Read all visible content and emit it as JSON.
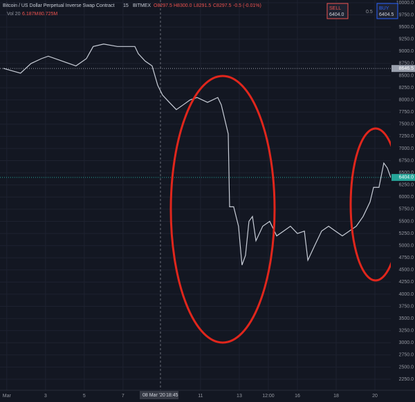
{
  "chart_data": {
    "type": "line",
    "title": "Bitcoin / US Dollar Perpetual Inverse Swap Contract",
    "interval": "15",
    "exchange": "BITMEX",
    "ohlc": [
      "O8297.5",
      "H8300.0",
      "L8291.5",
      "C8297.5",
      "-0.5 (-0.01%)"
    ],
    "volume_legend": [
      "Vol 20",
      "6.187M",
      "80.725M"
    ],
    "order_panel": {
      "sell_label": "SELL",
      "sell_price": "6404.0",
      "spread": "0.5",
      "buy_label": "BUY",
      "buy_price": "6404.5"
    },
    "crosshair": {
      "date": "08 Mar '20",
      "time": "18:45"
    },
    "series": [
      {
        "name": "BTCUSD",
        "color": "#c9ced8",
        "x": [
          0.82,
          1.71,
          2.25,
          2.79,
          3.14,
          3.86,
          4.57,
          5.11,
          5.46,
          6.0,
          6.71,
          7.61,
          7.79,
          8.14,
          8.5,
          8.79,
          9.04,
          9.39,
          9.75,
          10.11,
          10.46,
          10.82,
          11.36,
          11.89,
          12.07,
          12.25,
          12.43,
          12.5,
          12.71,
          12.96,
          13.14,
          13.32,
          13.5,
          13.68,
          13.86,
          14.21,
          14.57,
          14.93,
          15.29,
          15.64,
          16.0,
          16.36,
          16.54,
          16.89,
          17.25,
          17.61,
          17.96,
          18.32,
          18.68,
          19.04,
          19.39,
          19.75,
          19.93,
          20.21,
          20.46,
          20.64,
          20.82
        ],
        "values": [
          8650,
          8550,
          8750,
          8850,
          8900,
          8800,
          8700,
          8850,
          9100,
          9150,
          9100,
          9100,
          8950,
          8800,
          8700,
          8300,
          8100,
          7950,
          7800,
          7900,
          8000,
          8050,
          7950,
          8050,
          7900,
          7600,
          7300,
          5800,
          5800,
          5400,
          4600,
          4800,
          5500,
          5600,
          5100,
          5400,
          5500,
          5200,
          5300,
          5400,
          5250,
          5300,
          4700,
          5000,
          5300,
          5400,
          5300,
          5200,
          5300,
          5400,
          5600,
          5900,
          6200,
          6200,
          6700,
          6600,
          6400
        ]
      }
    ],
    "price_lines": [
      {
        "value": 8646.5,
        "label": "8646.5",
        "color": "#9aa0ad"
      },
      {
        "value": 6404,
        "label": "6404.0",
        "color": "#26a69a"
      }
    ],
    "xlim": [
      0.65,
      20.82
    ],
    "xticks": [
      {
        "value": 1,
        "label": "Mar"
      },
      3,
      5,
      7,
      11,
      13,
      {
        "value": 14.5,
        "label": "12:00"
      },
      16,
      18,
      20
    ],
    "ylim": [
      2250,
      10000
    ],
    "yticks": [
      {
        "value": 2250,
        "label": "2250.0"
      },
      {
        "value": 2500,
        "label": "2500.0"
      },
      {
        "value": 2750,
        "label": "2750.0"
      },
      {
        "value": 3000,
        "label": "3000.0"
      },
      {
        "value": 3250,
        "label": "3250.0"
      },
      {
        "value": 3500,
        "label": "3500.0"
      },
      {
        "value": 3750,
        "label": "3750.0"
      },
      {
        "value": 4000,
        "label": "4000.0"
      },
      {
        "value": 4250,
        "label": "4250.0"
      },
      {
        "value": 4500,
        "label": "4500.0"
      },
      {
        "value": 4750,
        "label": "4750.0"
      },
      {
        "value": 5000,
        "label": "5000.0"
      },
      {
        "value": 5250,
        "label": "5250.0"
      },
      {
        "value": 5500,
        "label": "5500.0"
      },
      {
        "value": 5750,
        "label": "5750.0"
      },
      {
        "value": 6000,
        "label": "6000.0"
      },
      {
        "value": 6250,
        "label": "6250.0"
      },
      {
        "value": 6500,
        "label": "6500.0"
      },
      {
        "value": 6750,
        "label": "6750.0"
      },
      {
        "value": 7000,
        "label": "7000.0"
      },
      {
        "value": 7250,
        "label": "7250.0"
      },
      {
        "value": 7500,
        "label": "7500.0"
      },
      {
        "value": 7750,
        "label": "7750.0"
      },
      {
        "value": 8000,
        "label": "8000.0"
      },
      {
        "value": 8250,
        "label": "8250.0"
      },
      {
        "value": 8500,
        "label": "8500.0"
      },
      {
        "value": 8750,
        "label": "8750.0"
      },
      {
        "value": 9000,
        "label": "9000.0"
      },
      {
        "value": 9250,
        "label": "9250.0"
      },
      {
        "value": 9500,
        "label": "9500.0"
      },
      {
        "value": 9750,
        "label": "9750.0"
      },
      {
        "value": 10000,
        "label": "10000.0"
      }
    ],
    "grid": true
  }
}
